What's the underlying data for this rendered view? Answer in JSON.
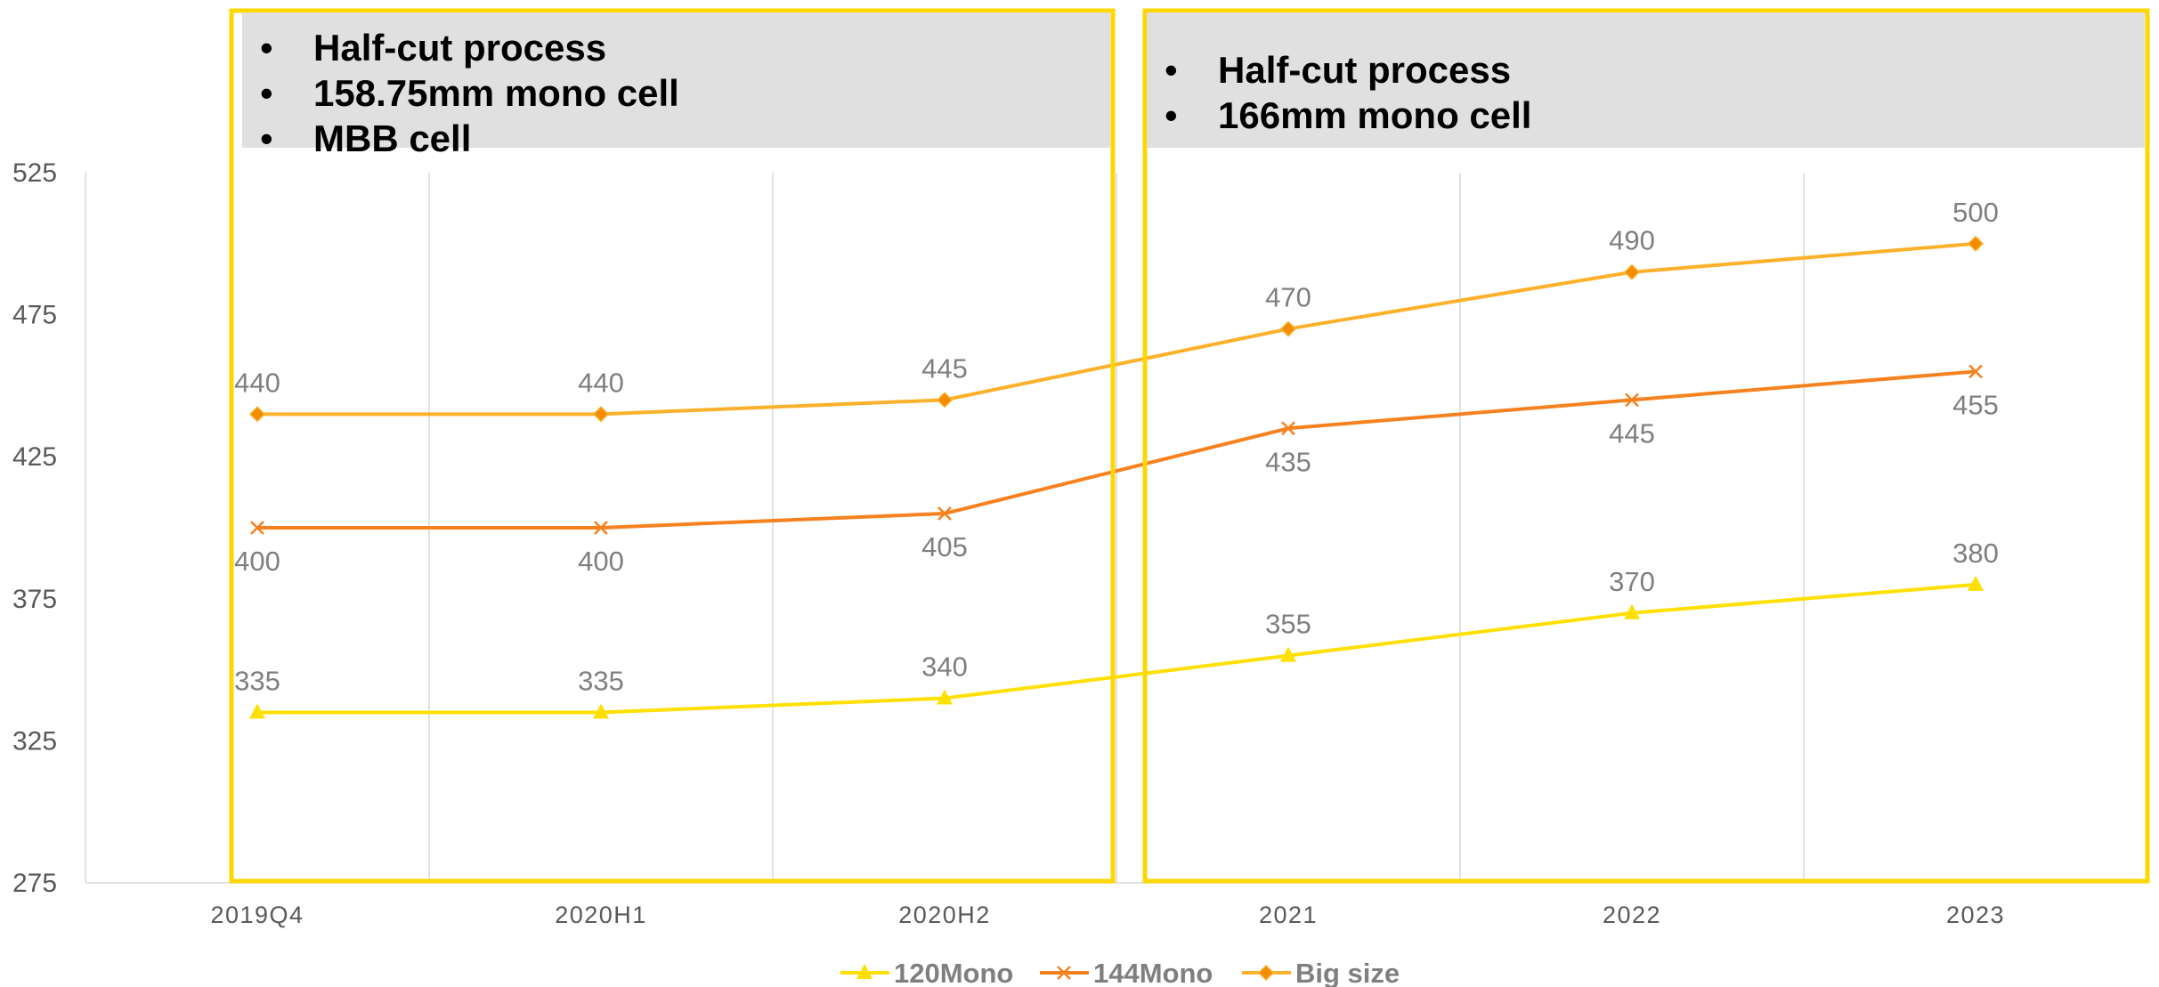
{
  "annotations": [
    {
      "items": [
        "Half-cut process",
        "158.75mm mono cell",
        "MBB cell"
      ],
      "bullet": "•"
    },
    {
      "items": [
        "Half-cut process",
        "166mm mono cell"
      ],
      "bullet": "•"
    }
  ],
  "colors": {
    "box_border": "#FFD700",
    "note_fill": "#E0E0E0",
    "grid": "#D9D9D9",
    "series_120mono": "#FFE000",
    "series_144mono": "#F7811E",
    "series_bigsize": "#FBB12B",
    "marker_bigsize": "#F28C00"
  },
  "chart_data": {
    "type": "line",
    "categories": [
      "2019Q4",
      "2020H1",
      "2020H2",
      "2021",
      "2022",
      "2023"
    ],
    "ylim": [
      275,
      525
    ],
    "yticks": [
      275,
      325,
      375,
      425,
      475,
      525
    ],
    "title": "",
    "xlabel": "",
    "ylabel": "",
    "grid": "vertical",
    "legend_position": "bottom",
    "series": [
      {
        "name": "120Mono",
        "values": [
          335,
          335,
          340,
          355,
          370,
          380
        ],
        "marker": "triangle",
        "label_position": "above"
      },
      {
        "name": "144Mono",
        "values": [
          400,
          400,
          405,
          435,
          445,
          455
        ],
        "marker": "x",
        "label_position": "below"
      },
      {
        "name": "Big size",
        "values": [
          440,
          440,
          445,
          470,
          490,
          500
        ],
        "marker": "diamond",
        "label_position": "above"
      }
    ]
  }
}
